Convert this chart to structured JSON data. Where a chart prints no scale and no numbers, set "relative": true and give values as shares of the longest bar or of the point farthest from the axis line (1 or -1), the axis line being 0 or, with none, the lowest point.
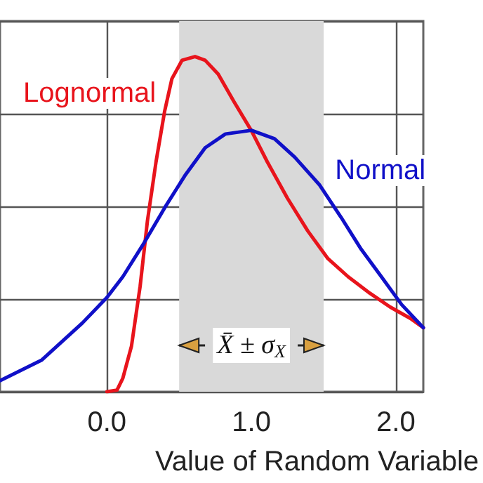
{
  "chart_data": {
    "type": "line",
    "xlabel": "Value of Random Variable",
    "relative": true,
    "xlim": [
      -0.74,
      2.19
    ],
    "xticks": [
      {
        "value": 0,
        "label": "0.0"
      },
      {
        "value": 1,
        "label": "1.0"
      },
      {
        "value": 2,
        "label": "2.0"
      }
    ],
    "grid": true,
    "legend": false,
    "marker": "none",
    "line_style": "solid",
    "series": [
      {
        "name": "Lognormal",
        "color": "#e8141c",
        "x": [
          0,
          0.07,
          0.11,
          0.17,
          0.23,
          0.28,
          0.34,
          0.4,
          0.45,
          0.52,
          0.61,
          0.68,
          0.77,
          0.88,
          1.0,
          1.11,
          1.25,
          1.39,
          1.53,
          1.67,
          1.82,
          1.96,
          2.1,
          2.19
        ],
        "values": [
          0,
          0.005,
          0.04,
          0.136,
          0.315,
          0.508,
          0.686,
          0.838,
          0.934,
          0.989,
          1,
          0.989,
          0.948,
          0.865,
          0.779,
          0.686,
          0.577,
          0.48,
          0.397,
          0.343,
          0.294,
          0.253,
          0.219,
          0.191
        ]
      },
      {
        "name": "Normal",
        "color": "#1010c8",
        "x": [
          -0.74,
          -0.45,
          -0.17,
          0,
          0.11,
          0.25,
          0.4,
          0.54,
          0.68,
          0.82,
          1.0,
          1.16,
          1.3,
          1.47,
          1.62,
          1.76,
          1.9,
          2.04,
          2.19
        ],
        "values": [
          0.033,
          0.095,
          0.205,
          0.281,
          0.343,
          0.439,
          0.549,
          0.645,
          0.728,
          0.769,
          0.78,
          0.755,
          0.7,
          0.618,
          0.521,
          0.425,
          0.343,
          0.26,
          0.191
        ]
      }
    ],
    "bands": [
      {
        "axis": "x",
        "from": 0.5,
        "to": 1.5,
        "color": "#d9d9d9"
      }
    ],
    "annotations": [
      "X̄ ± σ$_{X}$"
    ]
  }
}
